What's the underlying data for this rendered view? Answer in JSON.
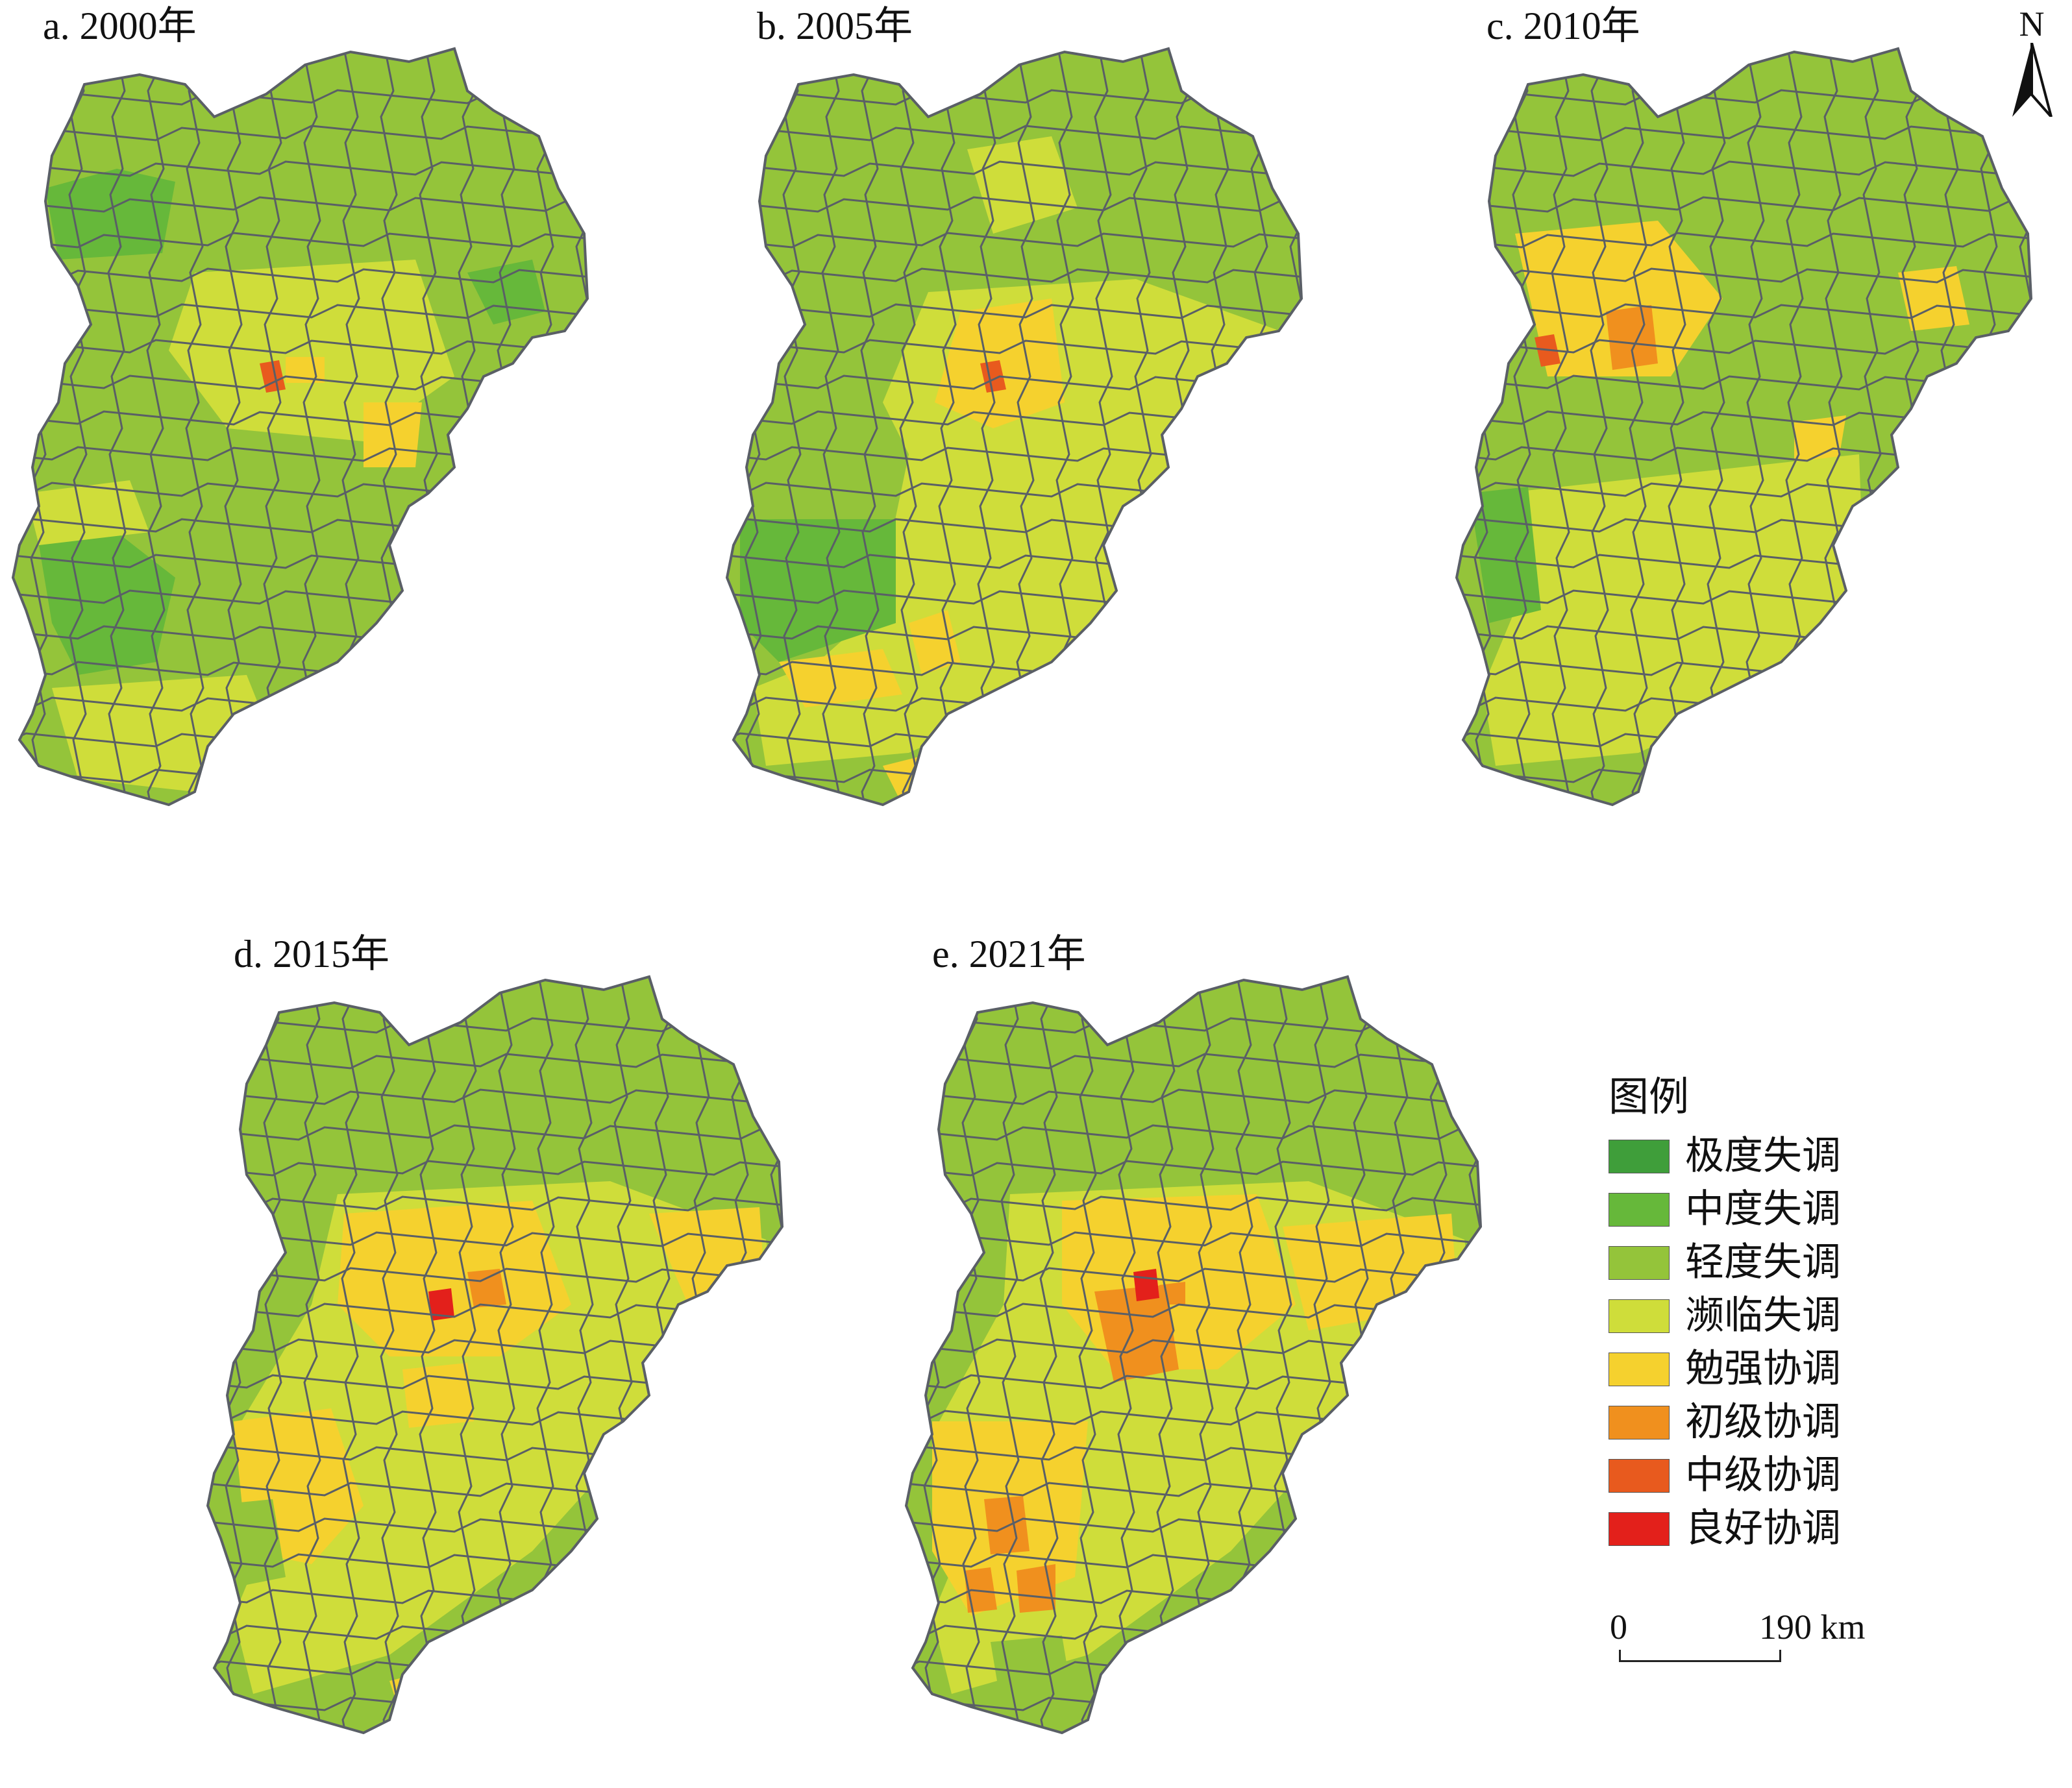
{
  "panels": [
    {
      "id": "a",
      "title": "a. 2000年"
    },
    {
      "id": "b",
      "title": "b. 2005年"
    },
    {
      "id": "c",
      "title": "c. 2010年"
    },
    {
      "id": "d",
      "title": "d. 2015年"
    },
    {
      "id": "e",
      "title": "e. 2021年"
    }
  ],
  "north_arrow": {
    "letter": "N"
  },
  "legend": {
    "title": "图例",
    "items": [
      {
        "label": "极度失调",
        "color": "#3f9e3a"
      },
      {
        "label": "中度失调",
        "color": "#66b83a"
      },
      {
        "label": "轻度失调",
        "color": "#94c43a"
      },
      {
        "label": "濒临失调",
        "color": "#cfdd3a"
      },
      {
        "label": "勉强协调",
        "color": "#f5d12e"
      },
      {
        "label": "初级协调",
        "color": "#f0901e"
      },
      {
        "label": "中级协调",
        "color": "#e85a1e"
      },
      {
        "label": "良好协调",
        "color": "#e3201b"
      }
    ]
  },
  "scale_bar": {
    "start": "0",
    "end": "190 km"
  },
  "region_colors": {
    "extreme_imbalance": "#3f9e3a",
    "moderate_imbalance": "#66b83a",
    "mild_imbalance": "#94c43a",
    "near_imbalance": "#cfdd3a",
    "barely_coordinated": "#f5d12e",
    "primary_coordinated": "#f0901e",
    "intermediate_coordinated": "#e85a1e",
    "good_coordinated": "#e3201b",
    "boundary": "#5a5f66"
  }
}
